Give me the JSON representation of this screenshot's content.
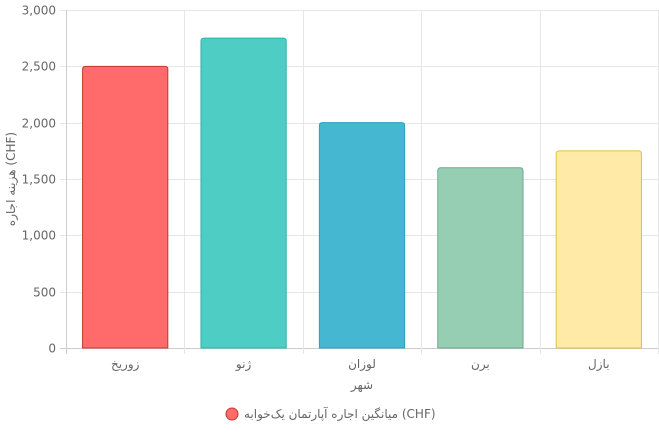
{
  "chart_data": {
    "type": "bar",
    "categories": [
      "زوریخ",
      "ژنو",
      "لوزان",
      "برن",
      "بازل"
    ],
    "series": [
      {
        "name": "میانگین اجاره آپارتمان یک‌خوابه (CHF)",
        "values": [
          2500,
          2750,
          2000,
          1600,
          1750
        ]
      }
    ],
    "bar_colors": [
      "#ff6b6b",
      "#4ecdc4",
      "#45b7d1",
      "#96ceb4",
      "#ffeaa7"
    ],
    "bar_border_colors": [
      "#c0392b",
      "#2bb3a9",
      "#2e9fbb",
      "#6fa98c",
      "#e0bd4a"
    ],
    "legend_color": "#ff6b6b",
    "legend_border_color": "#c0392b",
    "xlabel": "شهر",
    "ylabel": "هزینه اجاره (CHF)",
    "ylim": [
      0,
      3000
    ],
    "y_ticks": [
      "0",
      "500",
      "1,000",
      "1,500",
      "2,000",
      "2,500",
      "3,000"
    ],
    "y_tick_values": [
      0,
      500,
      1000,
      1500,
      2000,
      2500,
      3000
    ],
    "grid": true,
    "legend_position": "bottom"
  }
}
